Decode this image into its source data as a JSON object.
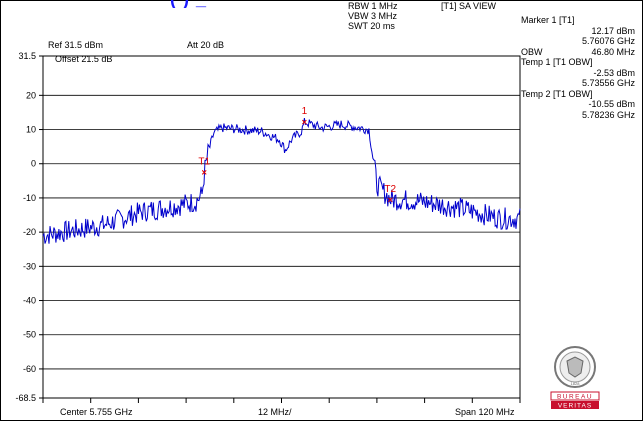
{
  "title_fragment": "(  ) _",
  "header": {
    "ref_level": "Ref 31.5 dBm",
    "attenuation": "Att  20 dB",
    "rbw": "RBW 1 MHz",
    "vbw": "VBW 3 MHz",
    "swt": "SWT 20 ms",
    "view": "[T1] SA VIEW"
  },
  "offset": "Offset 21.5 dB",
  "markers": {
    "marker1_title": "Marker 1 [T1]",
    "marker1_level": "12.17 dBm",
    "marker1_freq": "5.76076 GHz",
    "obw_label": "OBW",
    "obw_value": "46.80 MHz",
    "temp1_title": "Temp 1 [T1 OBW]",
    "temp1_level": "-2.53 dBm",
    "temp1_freq": "5.73556 GHz",
    "temp2_title": "Temp 2 [T1 OBW]",
    "temp2_level": "-10.55 dBm",
    "temp2_freq": "5.78236 GHz"
  },
  "footer": {
    "center": "Center 5.755 GHz",
    "div": "12 MHz/",
    "span": "Span 120 MHz"
  },
  "logo": {
    "name": "BUREAU VERITAS",
    "line1": "BUREAU",
    "line2": "VERITAS",
    "year": "1828"
  },
  "colors": {
    "trace": "#0000cc",
    "marker": "#dd0000",
    "logo_red": "#c8102e"
  },
  "chart_data": {
    "type": "line",
    "title": "",
    "xlabel": "",
    "ylabel": "",
    "xlim": [
      5.695,
      5.815
    ],
    "ylim": [
      -68.5,
      31.5
    ],
    "y_ticks": [
      "31.5",
      "20",
      "10",
      "0",
      "-10",
      "-20",
      "-30",
      "-40",
      "-50",
      "-60",
      "-68.5"
    ],
    "y_tick_values": [
      31.5,
      20,
      10,
      0,
      -10,
      -20,
      -30,
      -40,
      -50,
      -60,
      -68.5
    ],
    "grid": true,
    "series": [
      {
        "x": [
          5.695,
          5.7,
          5.705,
          5.71,
          5.715,
          5.72,
          5.725,
          5.73,
          5.7335,
          5.735,
          5.7356,
          5.7365,
          5.738,
          5.74,
          5.745,
          5.75,
          5.7545,
          5.756,
          5.7575,
          5.76,
          5.7608,
          5.765,
          5.77,
          5.777,
          5.779,
          5.7824,
          5.785,
          5.79,
          5.795,
          5.8,
          5.805,
          5.81,
          5.815
        ],
        "y": [
          -21,
          -20,
          -19,
          -18,
          -16,
          -14,
          -13,
          -12,
          -11,
          -9,
          -2.5,
          3,
          9,
          10.5,
          10,
          9.5,
          7,
          4,
          7,
          9.5,
          12.2,
          10.5,
          11.5,
          10,
          -6,
          -10.5,
          -10.5,
          -11,
          -12,
          -13,
          -14.5,
          -16,
          -16
        ]
      }
    ],
    "markers": [
      {
        "label": "1",
        "x": 5.76076,
        "y": 12.17
      },
      {
        "label": "T1",
        "x": 5.73556,
        "y": -2.53
      },
      {
        "label": "T2",
        "x": 5.78236,
        "y": -10.55
      }
    ]
  }
}
